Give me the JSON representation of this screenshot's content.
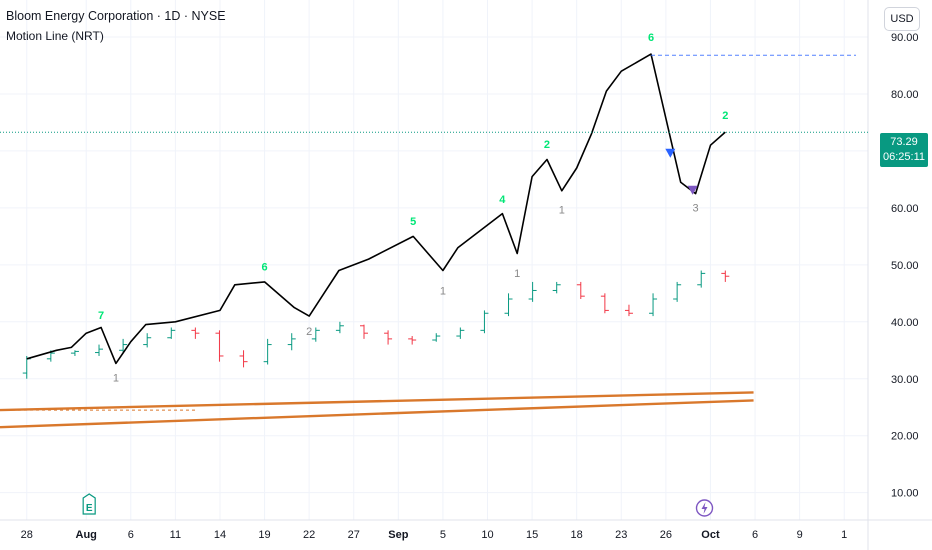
{
  "header": {
    "title": "Bloom Energy Corporation · 1D · NYSE",
    "indicator": "Motion Line (NRT)"
  },
  "price_scale": {
    "currency_label": "USD",
    "last_price": "73.29",
    "countdown": "06:25:11"
  },
  "colors": {
    "up": "#089981",
    "down": "#f23645",
    "line": "#000000",
    "count_up": "#00e676",
    "count_down": "#888888",
    "wedge": "#d9782c",
    "sell_marker": "#2962ff",
    "buy_marker": "#7e57c2",
    "prior_high": "#2962ff"
  },
  "chart_data": {
    "type": "line",
    "y_ticks": [
      "90.00",
      "80.00",
      "70.00",
      "60.00",
      "50.00",
      "40.00",
      "30.00",
      "20.00",
      "10.00"
    ],
    "ylim": [
      5.2,
      96.5
    ],
    "x_ticks": [
      {
        "i": 0,
        "label": "28"
      },
      {
        "i": 4,
        "label": "Aug"
      },
      {
        "i": 7,
        "label": "6"
      },
      {
        "i": 10,
        "label": "11"
      },
      {
        "i": 13,
        "label": "14"
      },
      {
        "i": 16,
        "label": "19"
      },
      {
        "i": 19,
        "label": "22"
      },
      {
        "i": 22,
        "label": "27"
      },
      {
        "i": 25,
        "label": "Sep"
      },
      {
        "i": 28,
        "label": "5"
      },
      {
        "i": 31,
        "label": "10"
      },
      {
        "i": 34,
        "label": "15"
      },
      {
        "i": 37,
        "label": "18"
      },
      {
        "i": 40,
        "label": "23"
      },
      {
        "i": 43,
        "label": "26"
      },
      {
        "i": 46,
        "label": "Oct"
      },
      {
        "i": 49,
        "label": "6"
      },
      {
        "i": 52,
        "label": "9"
      },
      {
        "i": 55,
        "label": "1"
      }
    ],
    "x_range": [
      -1.8,
      56.6
    ],
    "bars": [
      {
        "o": 31,
        "c": 33.5,
        "h": 34,
        "l": 30
      },
      {
        "o": 33.5,
        "c": 34.5,
        "h": 35,
        "l": 33
      },
      {
        "o": 34.5,
        "c": 34.8,
        "h": 35,
        "l": 34
      },
      {
        "o": 34.6,
        "c": 35.2,
        "h": 36,
        "l": 34
      },
      {
        "o": 35,
        "c": 36,
        "h": 37,
        "l": 34.5
      },
      {
        "o": 36,
        "c": 37.2,
        "h": 38,
        "l": 35.5
      },
      {
        "o": 37.2,
        "c": 38.5,
        "h": 39,
        "l": 37
      },
      {
        "o": 38.5,
        "c": 38,
        "h": 39,
        "l": 37
      },
      {
        "o": 38,
        "c": 34,
        "h": 38.5,
        "l": 33
      },
      {
        "o": 34,
        "c": 33,
        "h": 35,
        "l": 32
      },
      {
        "o": 33,
        "c": 36,
        "h": 37,
        "l": 32.5
      },
      {
        "o": 36,
        "c": 37,
        "h": 38,
        "l": 35
      },
      {
        "o": 37,
        "c": 38.5,
        "h": 39,
        "l": 36.5
      },
      {
        "o": 38.5,
        "c": 39.3,
        "h": 40,
        "l": 38
      },
      {
        "o": 39.3,
        "c": 38,
        "h": 39.5,
        "l": 37
      },
      {
        "o": 38,
        "c": 37,
        "h": 38.5,
        "l": 36
      },
      {
        "o": 37,
        "c": 36.8,
        "h": 37.5,
        "l": 36
      },
      {
        "o": 36.8,
        "c": 37.5,
        "h": 38,
        "l": 36.5
      },
      {
        "o": 37.5,
        "c": 38.5,
        "h": 39,
        "l": 37
      },
      {
        "o": 38.5,
        "c": 41.5,
        "h": 42,
        "l": 38
      },
      {
        "o": 41.5,
        "c": 44,
        "h": 45,
        "l": 41
      },
      {
        "o": 44,
        "c": 45.5,
        "h": 47,
        "l": 43.5
      },
      {
        "o": 45.5,
        "c": 46.5,
        "h": 47,
        "l": 45
      },
      {
        "o": 46.5,
        "c": 44.5,
        "h": 47,
        "l": 44
      },
      {
        "o": 44.5,
        "c": 42,
        "h": 45,
        "l": 41.5
      },
      {
        "o": 42,
        "c": 41.5,
        "h": 43,
        "l": 41
      },
      {
        "o": 41.5,
        "c": 44,
        "h": 45,
        "l": 41
      },
      {
        "o": 44,
        "c": 46.5,
        "h": 47,
        "l": 43.5
      },
      {
        "o": 46.5,
        "c": 48.5,
        "h": 49,
        "l": 46
      },
      {
        "o": 48.5,
        "c": 48,
        "h": 49,
        "l": 47
      }
    ],
    "motion_line": [
      [
        0,
        33.5
      ],
      [
        2,
        35
      ],
      [
        3,
        35.5
      ],
      [
        4,
        38
      ],
      [
        5,
        39
      ],
      [
        6,
        32.7
      ],
      [
        7,
        36.5
      ],
      [
        8,
        39.5
      ],
      [
        10,
        40
      ],
      [
        13,
        42
      ],
      [
        14,
        46.5
      ],
      [
        16,
        47
      ],
      [
        18,
        42.5
      ],
      [
        19,
        41
      ],
      [
        20,
        45
      ],
      [
        21,
        49
      ],
      [
        23,
        51
      ],
      [
        26,
        55
      ],
      [
        28,
        49
      ],
      [
        29,
        53
      ],
      [
        32,
        59
      ],
      [
        33,
        52
      ],
      [
        34,
        65.5
      ],
      [
        35,
        68.5
      ],
      [
        36,
        63
      ],
      [
        37,
        67
      ],
      [
        38,
        73
      ],
      [
        39,
        80.5
      ],
      [
        40,
        84
      ],
      [
        42,
        87
      ],
      [
        44,
        64.5
      ],
      [
        45,
        62.5
      ],
      [
        46,
        71
      ],
      [
        47,
        73.3
      ]
    ],
    "counts": [
      {
        "i": 5,
        "v": 40.5,
        "label": "7",
        "dir": "up"
      },
      {
        "i": 6,
        "v": 29.5,
        "label": "1",
        "dir": "down"
      },
      {
        "i": 16,
        "v": 49,
        "label": "6",
        "dir": "up"
      },
      {
        "i": 19,
        "v": 37.7,
        "label": "2",
        "dir": "down"
      },
      {
        "i": 26,
        "v": 57,
        "label": "5",
        "dir": "up"
      },
      {
        "i": 28,
        "v": 44.8,
        "label": "1",
        "dir": "down"
      },
      {
        "i": 32,
        "v": 60.9,
        "label": "4",
        "dir": "up"
      },
      {
        "i": 33,
        "v": 47.9,
        "label": "1",
        "dir": "down"
      },
      {
        "i": 35,
        "v": 70.5,
        "label": "2",
        "dir": "up"
      },
      {
        "i": 36,
        "v": 59,
        "label": "1",
        "dir": "down"
      },
      {
        "i": 42,
        "v": 89.3,
        "label": "6",
        "dir": "up"
      },
      {
        "i": 45,
        "v": 59.4,
        "label": "3",
        "dir": "down"
      },
      {
        "i": 47,
        "v": 75.6,
        "label": "2",
        "dir": "up"
      }
    ],
    "last_price": 73.29,
    "prior_high": 86.8,
    "wedge_upper": [
      [
        -1.8,
        24.5
      ],
      [
        48.9,
        27.6
      ]
    ],
    "wedge_lower": [
      [
        -1.8,
        21.5
      ],
      [
        48.9,
        26.2
      ]
    ],
    "wedge_dash": [
      [
        -1.8,
        24.5
      ],
      [
        11.5,
        24.5
      ]
    ]
  }
}
